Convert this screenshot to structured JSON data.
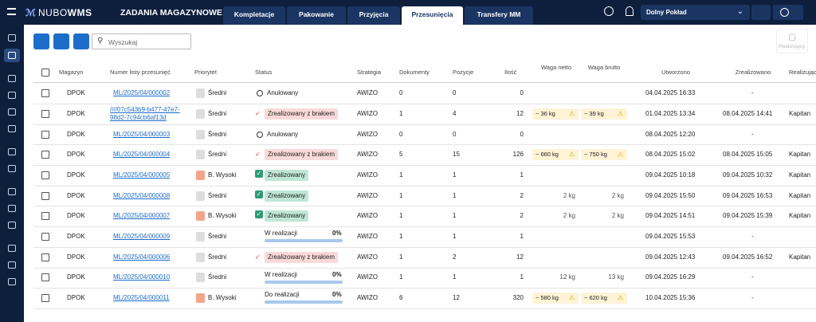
{
  "header": {
    "logo_light": "NUBO",
    "logo_bold": "WMS",
    "title": "ZADANIA MAGAZYNOWE",
    "tabs": [
      "Kompletacje",
      "Pakowanie",
      "Przyjęcia",
      "Przesunięcia",
      "Transfery MM"
    ],
    "warehouse": "Dolny Pokład"
  },
  "toolbar": {
    "search": "Wyszukaj",
    "realizer_button": "Realizujący"
  },
  "table": {
    "columns": [
      "Magazyn",
      "Numer listy przesunięć",
      "Priorytet",
      "Status",
      "Strategia",
      "Dokumenty",
      "Pozycje",
      "Ilość",
      "Waga netto",
      "Waga brutto",
      "Utworzono",
      "Zrealizowano",
      "Realizujący"
    ],
    "rows": [
      {
        "warehouse": "DPOK",
        "number": "ML/2025/04/000002",
        "priority_medium": "Średni",
        "status_cancelled": "Anulowany",
        "strategy": "AWIZO",
        "documents": 0,
        "positions": 0,
        "quantity": 0,
        "created": "04.04.2025 16:33",
        "completed_none": "-"
      },
      {
        "warehouse": "DPOK",
        "number": "////07c543b9-b477-47e7-98d2-7c94cb6af13d",
        "priority_medium": "Średni",
        "status_short": "Zrealizowany z brakiem",
        "strategy": "AWIZO",
        "documents": 1,
        "positions": 4,
        "quantity": 12,
        "net_est": "~ 36 kg",
        "gross_est": "~ 39 kg",
        "created": "01.04.2025 13:34",
        "completed": "08.04.2025 14:41",
        "realizer": "Kapitan"
      },
      {
        "warehouse": "DPOK",
        "number": "ML/2025/04/000003",
        "priority_medium": "Średni",
        "status_cancelled": "Anulowany",
        "strategy": "AWIZO",
        "documents": 0,
        "positions": 0,
        "quantity": 0,
        "created": "08.04.2025 12:20",
        "completed_none": "-"
      },
      {
        "warehouse": "DPOK",
        "number": "ML/2025/04/000004",
        "priority_medium": "Średni",
        "status_short": "Zrealizowany z brakiem",
        "strategy": "AWIZO",
        "documents": 5,
        "positions": 15,
        "quantity": 126,
        "net_est": "~ 660 kg",
        "gross_est": "~ 750 kg",
        "created": "08.04.2025 15:02",
        "completed": "08.04.2025 15:05",
        "realizer": "Kapitan"
      },
      {
        "warehouse": "DPOK",
        "number": "ML/2025/04/000005",
        "priority_high": "B. Wysoki",
        "status_done": "Zrealizowany",
        "strategy": "AWIZO",
        "documents": 1,
        "positions": 1,
        "quantity": 1,
        "created": "09.04.2025 10:18",
        "completed": "09.04.2025 10:32",
        "realizer": "Kapitan"
      },
      {
        "warehouse": "DPOK",
        "number": "ML/2025/04/000008",
        "priority_medium": "Średni",
        "status_done": "Zrealizowany",
        "strategy": "AWIZO",
        "documents": 1,
        "positions": 1,
        "quantity": 2,
        "net": "2 kg",
        "gross": "2 kg",
        "created": "09.04.2025 15:50",
        "completed": "09.04.2025 16:53",
        "realizer": "Kapitan"
      },
      {
        "warehouse": "DPOK",
        "number": "ML/2025/04/000007",
        "priority_high": "B. Wysoki",
        "status_done": "Zrealizowany",
        "strategy": "AWIZO",
        "documents": 1,
        "positions": 1,
        "quantity": 2,
        "net": "2 kg",
        "gross": "2 kg",
        "created": "09.04.2025 14:51",
        "completed": "09.04.2025 15:39",
        "realizer": "Kapitan"
      },
      {
        "warehouse": "DPOK",
        "number": "ML/2025/04/000009",
        "priority_medium": "Średni",
        "status_progress": "W realizacji",
        "progress": "0%",
        "strategy": "AWIZO",
        "documents": 1,
        "positions": 1,
        "quantity": 1,
        "created": "09.04.2025 15:53",
        "completed_none": "-"
      },
      {
        "warehouse": "DPOK",
        "number": "ML/2025/04/000006",
        "priority_medium": "Średni",
        "status_short": "Zrealizowany z brakiem",
        "strategy": "AWIZO",
        "documents": 1,
        "positions": 2,
        "quantity": 12,
        "created": "09.04.2025 12:43",
        "completed": "09.04.2025 16:52",
        "realizer": "Kapitan"
      },
      {
        "warehouse": "DPOK",
        "number": "ML/2025/04/000010",
        "priority_medium": "Średni",
        "status_progress": "W realizacji",
        "progress": "0%",
        "strategy": "AWIZO",
        "documents": 1,
        "positions": 1,
        "quantity": 1,
        "net": "12 kg",
        "gross": "13 kg",
        "created": "09.04.2025 16:29",
        "completed_none": "-"
      },
      {
        "warehouse": "DPOK",
        "number": "ML/2025/04/000011",
        "priority_high": "B. Wysoki",
        "status_progress": "Do realizacji",
        "progress": "0%",
        "strategy": "AWIZO",
        "documents": 6,
        "positions": 12,
        "quantity": 320,
        "net_est": "~ 580 kg",
        "gross_est": "~ 620 kg",
        "created": "10.04.2025 15:36",
        "completed_none": "-"
      }
    ]
  }
}
